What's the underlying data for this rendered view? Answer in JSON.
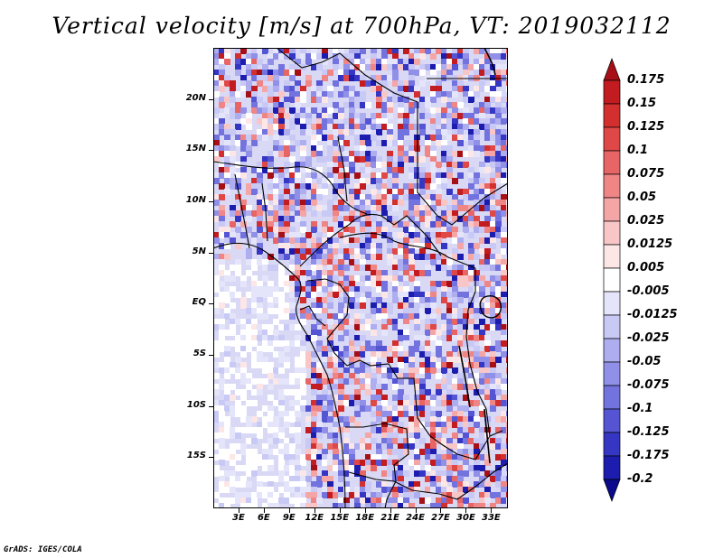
{
  "title": "Vertical velocity [m/s] at 700hPa, VT: 2019032112",
  "footer": "GrADS: IGES/COLA",
  "map": {
    "lon_range": [
      0,
      35
    ],
    "lat_range": [
      -20,
      25
    ],
    "lat_ticks": [
      {
        "value": 20,
        "label": "20N"
      },
      {
        "value": 15,
        "label": "15N"
      },
      {
        "value": 10,
        "label": "10N"
      },
      {
        "value": 5,
        "label": "5N"
      },
      {
        "value": 0,
        "label": "EQ"
      },
      {
        "value": -5,
        "label": "5S"
      },
      {
        "value": -10,
        "label": "10S"
      },
      {
        "value": -15,
        "label": "15S"
      }
    ],
    "lon_ticks": [
      {
        "value": 3,
        "label": "3E"
      },
      {
        "value": 6,
        "label": "6E"
      },
      {
        "value": 9,
        "label": "9E"
      },
      {
        "value": 12,
        "label": "12E"
      },
      {
        "value": 15,
        "label": "15E"
      },
      {
        "value": 18,
        "label": "18E"
      },
      {
        "value": 21,
        "label": "21E"
      },
      {
        "value": 24,
        "label": "24E"
      },
      {
        "value": 27,
        "label": "27E"
      },
      {
        "value": 30,
        "label": "30E"
      },
      {
        "value": 33,
        "label": "33E"
      }
    ]
  },
  "colorbar": {
    "labels": [
      "0.175",
      "0.15",
      "0.125",
      "0.1",
      "0.075",
      "0.05",
      "0.025",
      "0.0125",
      "0.005",
      "-0.005",
      "-0.0125",
      "-0.025",
      "-0.05",
      "-0.075",
      "-0.1",
      "-0.125",
      "-0.175",
      "-0.2"
    ],
    "colors": [
      "#a50f15",
      "#c21b20",
      "#d32f2f",
      "#e04848",
      "#e86565",
      "#ef8585",
      "#f4a6a6",
      "#f8c6c6",
      "#fce6e6",
      "#ffffff",
      "#e4e4fb",
      "#c9c9f6",
      "#adadf0",
      "#9090e8",
      "#7373df",
      "#5555d4",
      "#3636c4",
      "#1c1cae",
      "#0a0a8a"
    ]
  }
}
